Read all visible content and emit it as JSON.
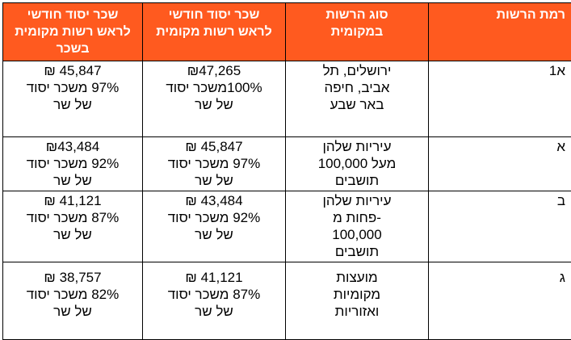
{
  "headers": {
    "level": "רמת הרשות",
    "type": [
      "סוג הרשות",
      "במקומית"
    ],
    "salary": [
      "שכר יסוד חודשי",
      "לראש רשות מקומית"
    ],
    "salary_deputy": [
      "שכר יסוד חודשי",
      "לראש רשות מקומית",
      "בשכר"
    ]
  },
  "rows": [
    {
      "level": "א1",
      "type": [
        "ירושלים, תל",
        "אביב, חיפה",
        "באר שבע"
      ],
      "salary": [
        "₪47,265",
        "100%משכר יסוד",
        "של שר"
      ],
      "salary_deputy": [
        "45,847 ₪",
        "97% משכר יסוד",
        "של שר"
      ]
    },
    {
      "level": "א",
      "type": [
        "עיריות שלהן",
        "מעל 100,000",
        "תושבים"
      ],
      "salary": [
        "45,847 ₪",
        "97% משכר יסוד",
        "של שר"
      ],
      "salary_deputy": [
        "₪43,484",
        "92% משכר יסוד",
        "של שר"
      ]
    },
    {
      "level": "ב",
      "type": [
        "עיריות שלהן",
        "-פחות מ",
        "100,000",
        "תושבים"
      ],
      "salary": [
        "43,484 ₪",
        "92% משכר יסוד",
        "של שר"
      ],
      "salary_deputy": [
        "41,121 ₪",
        "87% משכר יסוד",
        "של שר"
      ]
    },
    {
      "level": "ג",
      "type": [
        "מועצות",
        "מקומיות",
        "ואזוריות"
      ],
      "salary": [
        "41,121 ₪",
        "87% משכר יסוד",
        "של שר"
      ],
      "salary_deputy": [
        "38,757 ₪",
        "82% משכר יסוד",
        "של שר"
      ]
    }
  ]
}
